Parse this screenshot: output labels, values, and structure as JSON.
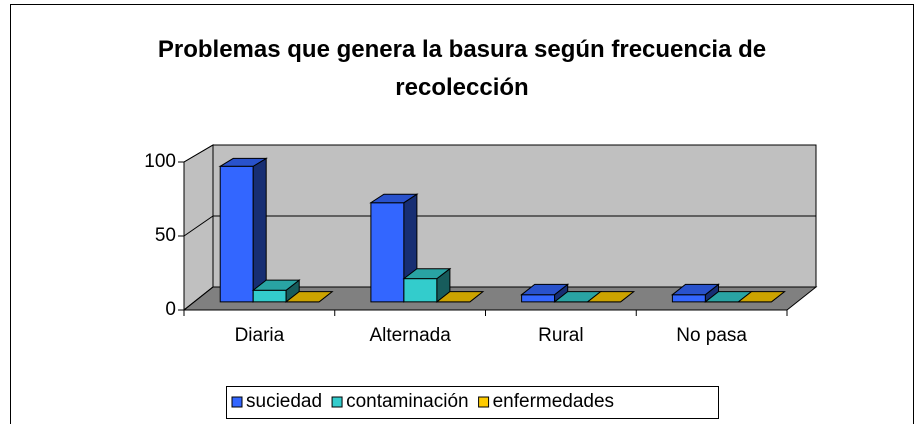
{
  "chart_data": {
    "type": "bar3d",
    "title": "Problemas que genera la basura según frecuencia de recolección",
    "categories": [
      "Diaria",
      "Alternada",
      "Rural",
      "No pasa"
    ],
    "series": [
      {
        "name": "suciedad",
        "color": "#3366ff",
        "values": [
          93,
          68,
          5,
          5
        ]
      },
      {
        "name": "contaminación",
        "color": "#33cccc",
        "values": [
          8,
          16,
          0,
          0
        ]
      },
      {
        "name": "enfermedades",
        "color": "#ffcc00",
        "values": [
          0,
          0,
          0,
          0
        ]
      }
    ],
    "ylim": [
      0,
      100
    ],
    "yticks": [
      0,
      50,
      100
    ],
    "grid": true,
    "legend": "bottom"
  }
}
